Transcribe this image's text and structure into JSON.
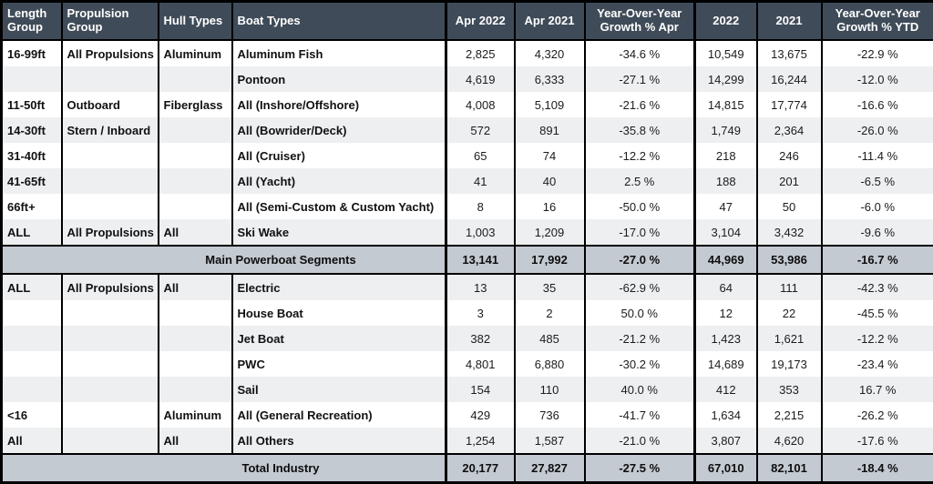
{
  "colors": {
    "header_bg": "#3f4b58",
    "header_text": "#ffffff",
    "summary_row_bg": "#c3cad2",
    "stripe_row_bg": "#edeff1",
    "border": "#000000",
    "body_text": "#1c1c1c"
  },
  "chart_data": {
    "type": "table",
    "columns": [
      "Length Group",
      "Propulsion Group",
      "Hull Types",
      "Boat Types",
      "Apr 2022",
      "Apr 2021",
      "Year-Over-Year Growth % Apr",
      "2022",
      "2021",
      "Year-Over-Year Growth % YTD"
    ],
    "column_keys": [
      "length-group",
      "propulsion-group",
      "hull-types",
      "boat-types",
      "apr-2022",
      "apr-2021",
      "yoy-growth-apr",
      "2022",
      "2021",
      "yoy-growth-ytd"
    ],
    "main_rows": [
      [
        "16-99ft",
        "All Propulsions",
        "Aluminum",
        "Aluminum Fish",
        "2,825",
        "4,320",
        "-34.6 %",
        "10,549",
        "13,675",
        "-22.9 %"
      ],
      [
        "",
        "",
        "",
        "Pontoon",
        "4,619",
        "6,333",
        "-27.1 %",
        "14,299",
        "16,244",
        "-12.0 %"
      ],
      [
        "11-50ft",
        "Outboard",
        "Fiberglass",
        "All (Inshore/Offshore)",
        "4,008",
        "5,109",
        "-21.6 %",
        "14,815",
        "17,774",
        "-16.6 %"
      ],
      [
        "14-30ft",
        "Stern / Inboard",
        "",
        "All (Bowrider/Deck)",
        "572",
        "891",
        "-35.8 %",
        "1,749",
        "2,364",
        "-26.0 %"
      ],
      [
        "31-40ft",
        "",
        "",
        "All (Cruiser)",
        "65",
        "74",
        "-12.2 %",
        "218",
        "246",
        "-11.4 %"
      ],
      [
        "41-65ft",
        "",
        "",
        "All (Yacht)",
        "41",
        "40",
        "2.5 %",
        "188",
        "201",
        "-6.5 %"
      ],
      [
        "66ft+",
        "",
        "",
        "All (Semi-Custom & Custom Yacht)",
        "8",
        "16",
        "-50.0 %",
        "47",
        "50",
        "-6.0 %"
      ],
      [
        "ALL",
        "All Propulsions",
        "All",
        "Ski Wake",
        "1,003",
        "1,209",
        "-17.0 %",
        "3,104",
        "3,432",
        "-9.6 %"
      ]
    ],
    "main_summary": {
      "label": "Main Powerboat Segments",
      "values": [
        "13,141",
        "17,992",
        "-27.0 %",
        "44,969",
        "53,986",
        "-16.7 %"
      ]
    },
    "other_rows": [
      [
        "ALL",
        "All Propulsions",
        "All",
        "Electric",
        "13",
        "35",
        "-62.9 %",
        "64",
        "111",
        "-42.3 %"
      ],
      [
        "",
        "",
        "",
        "House Boat",
        "3",
        "2",
        "50.0 %",
        "12",
        "22",
        "-45.5 %"
      ],
      [
        "",
        "",
        "",
        "Jet Boat",
        "382",
        "485",
        "-21.2 %",
        "1,423",
        "1,621",
        "-12.2 %"
      ],
      [
        "",
        "",
        "",
        "PWC",
        "4,801",
        "6,880",
        "-30.2 %",
        "14,689",
        "19,173",
        "-23.4 %"
      ],
      [
        "",
        "",
        "",
        "Sail",
        "154",
        "110",
        "40.0 %",
        "412",
        "353",
        "16.7 %"
      ],
      [
        "<16",
        "",
        "Aluminum",
        "All (General Recreation)",
        "429",
        "736",
        "-41.7 %",
        "1,634",
        "2,215",
        "-26.2 %"
      ],
      [
        "All",
        "",
        "All",
        "All Others",
        "1,254",
        "1,587",
        "-21.0 %",
        "3,807",
        "4,620",
        "-17.6 %"
      ]
    ],
    "total_summary": {
      "label": "Total Industry",
      "values": [
        "20,177",
        "27,827",
        "-27.5 %",
        "67,010",
        "82,101",
        "-18.4 %"
      ]
    }
  }
}
